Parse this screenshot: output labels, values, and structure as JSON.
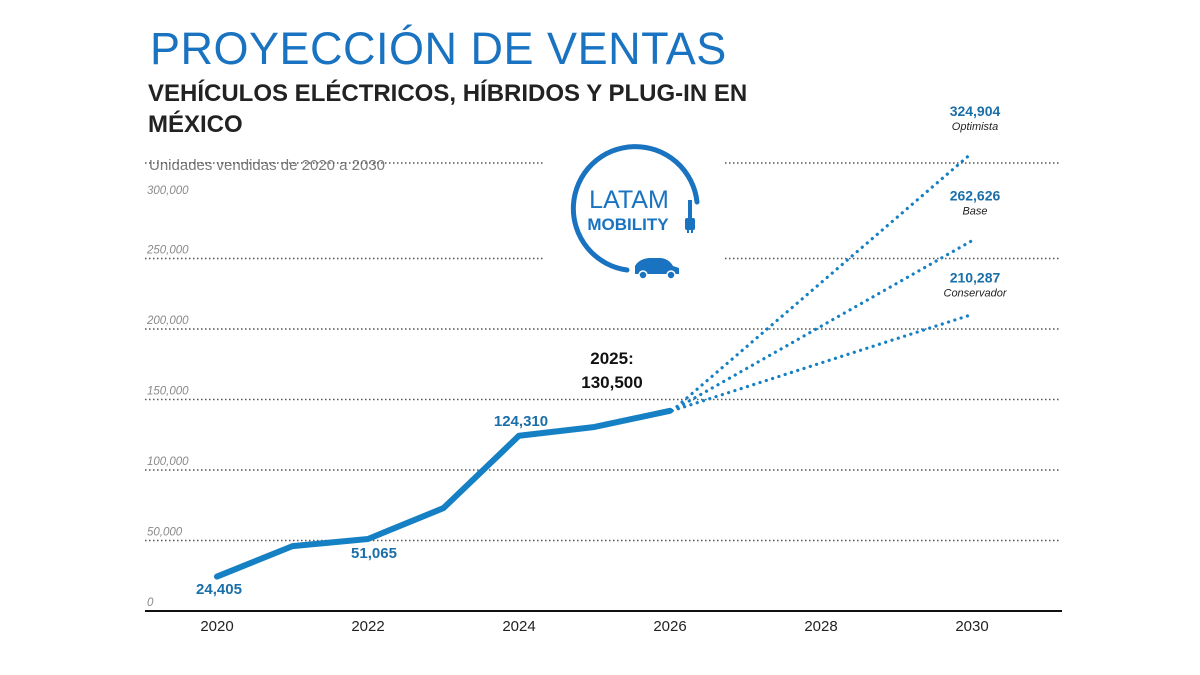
{
  "header": {
    "title": "PROYECCIÓN DE VENTAS",
    "subtitle": "VEHÍCULOS ELÉCTRICOS, HÍBRIDOS Y PLUG-IN EN MÉXICO",
    "units_note": "Unidades vendidas de 2020 a 2030"
  },
  "logo": {
    "line1": "LATAM",
    "line2": "MOBILITY",
    "icon": "plug-car-icon"
  },
  "colors": {
    "accent": "#1a73c0",
    "line": "#1580c4",
    "dark_text": "#222222",
    "label_blue": "#1a6fa8"
  },
  "chart_data": {
    "type": "line",
    "ylim": [
      0,
      300000
    ],
    "xlim": [
      2020,
      2031
    ],
    "yticks": [
      {
        "value": 0,
        "label": "0"
      },
      {
        "value": 50000,
        "label": "50,000"
      },
      {
        "value": 100000,
        "label": "100,000"
      },
      {
        "value": 150000,
        "label": "150,000"
      },
      {
        "value": 200000,
        "label": "200,000"
      },
      {
        "value": 250000,
        "label": "250,000"
      },
      {
        "value": 300000,
        "label": "300,000"
      }
    ],
    "xticks": [
      {
        "value": 2020,
        "label": "2020"
      },
      {
        "value": 2022,
        "label": "2022"
      },
      {
        "value": 2024,
        "label": "2024"
      },
      {
        "value": 2026,
        "label": "2026"
      },
      {
        "value": 2028,
        "label": "2028"
      },
      {
        "value": 2030,
        "label": "2030"
      }
    ],
    "grid": true,
    "historical": {
      "x": [
        2020,
        2021,
        2022,
        2023,
        2024,
        2025,
        2026
      ],
      "y": [
        24405,
        46000,
        51065,
        73000,
        124310,
        130500,
        142000
      ]
    },
    "point_labels": [
      {
        "x": 2020,
        "y": 24405,
        "text": "24,405"
      },
      {
        "x": 2022,
        "y": 51065,
        "text": "51,065"
      },
      {
        "x": 2024,
        "y": 124310,
        "text": "124,310"
      }
    ],
    "callout": {
      "line1": "2025:",
      "line2": "130,500"
    },
    "projections": [
      {
        "name": "Optimista",
        "value_label": "324,904",
        "x": [
          2026,
          2030
        ],
        "y": [
          142000,
          324904
        ]
      },
      {
        "name": "Base",
        "value_label": "262,626",
        "x": [
          2026,
          2030
        ],
        "y": [
          142000,
          262626
        ]
      },
      {
        "name": "Conservador",
        "value_label": "210,287",
        "x": [
          2026,
          2030
        ],
        "y": [
          142000,
          210287
        ]
      }
    ]
  }
}
